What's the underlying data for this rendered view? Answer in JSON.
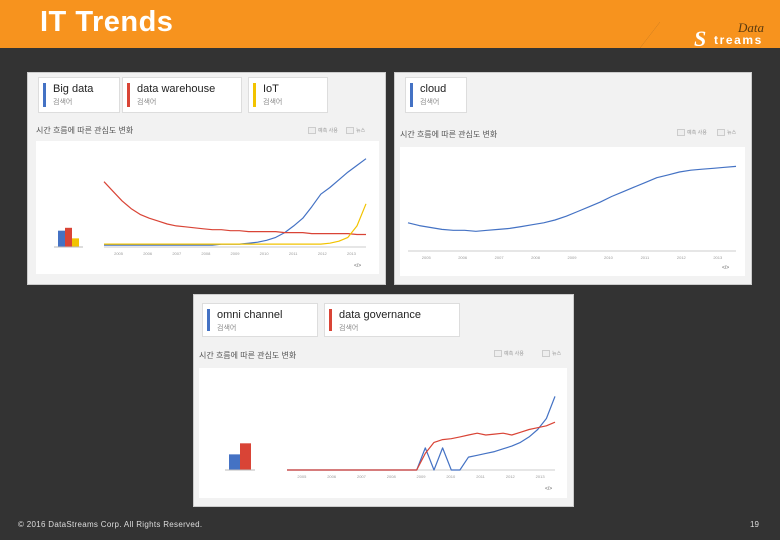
{
  "slide": {
    "title": "IT Trends",
    "logo": {
      "script": "Data",
      "text": "treams",
      "mark": "S"
    },
    "footer_left": "© 2016 DataStreams Corp. All Rights Reserved.",
    "page_number": "19",
    "colors": {
      "accent": "#f7931e",
      "background": "#333333",
      "blue": "#4472c4",
      "red": "#d94436",
      "yellow": "#f2c300"
    }
  },
  "chart_data": [
    {
      "type": "line",
      "terms": [
        {
          "name": "Big data",
          "sub": "검색어",
          "color": "#4472c4"
        },
        {
          "name": "data warehouse",
          "sub": "검색어",
          "color": "#d94436"
        },
        {
          "name": "IoT",
          "sub": "검색어",
          "color": "#f2c300"
        }
      ],
      "title": "시간 흐름에 따른 관심도 변화",
      "x_ticks": [
        "2005",
        "2006",
        "2007",
        "2008",
        "2009",
        "2010",
        "2011",
        "2012",
        "2013"
      ],
      "ylim": [
        0,
        100
      ],
      "averages": [
        {
          "name": "Big data",
          "value": 17,
          "color": "#4472c4"
        },
        {
          "name": "data warehouse",
          "value": 20,
          "color": "#d94436"
        },
        {
          "name": "IoT",
          "value": 9,
          "color": "#f2c300"
        }
      ],
      "series": [
        {
          "name": "Big data",
          "color": "#4472c4",
          "values": [
            2,
            2,
            2,
            2,
            2,
            2,
            2,
            2,
            2,
            2,
            2,
            2,
            2,
            3,
            3,
            3,
            4,
            5,
            7,
            10,
            15,
            22,
            30,
            42,
            55,
            62,
            70,
            78,
            85,
            92
          ]
        },
        {
          "name": "data warehouse",
          "color": "#d94436",
          "values": [
            68,
            58,
            48,
            40,
            34,
            30,
            27,
            24,
            22,
            21,
            20,
            19,
            18,
            18,
            17,
            17,
            16,
            16,
            16,
            16,
            15,
            15,
            15,
            14,
            14,
            14,
            14,
            14,
            13,
            13
          ]
        },
        {
          "name": "IoT",
          "color": "#f2c300",
          "values": [
            3,
            3,
            3,
            3,
            3,
            3,
            3,
            3,
            3,
            3,
            3,
            3,
            3,
            3,
            3,
            3,
            3,
            3,
            3,
            3,
            3,
            3,
            3,
            3,
            3,
            4,
            6,
            10,
            22,
            45
          ]
        }
      ]
    },
    {
      "type": "line",
      "terms": [
        {
          "name": "cloud",
          "sub": "검색어",
          "color": "#4472c4"
        }
      ],
      "title": "시간 흐름에 따른 관심도 변화",
      "x_ticks": [
        "2005",
        "2006",
        "2007",
        "2008",
        "2009",
        "2010",
        "2011",
        "2012",
        "2013"
      ],
      "ylim": [
        0,
        100
      ],
      "series": [
        {
          "name": "cloud",
          "color": "#4472c4",
          "values": [
            30,
            27,
            25,
            23,
            22,
            22,
            21,
            22,
            23,
            24,
            26,
            28,
            30,
            33,
            37,
            42,
            47,
            52,
            58,
            63,
            68,
            73,
            78,
            81,
            84,
            86,
            87,
            88,
            89,
            90
          ]
        }
      ]
    },
    {
      "type": "line",
      "terms": [
        {
          "name": "omni channel",
          "sub": "검색어",
          "color": "#4472c4"
        },
        {
          "name": "data governance",
          "sub": "검색어",
          "color": "#d94436"
        }
      ],
      "title": "시간 흐름에 따른 관심도 변화",
      "x_ticks": [
        "2005",
        "2006",
        "2007",
        "2008",
        "2009",
        "2010",
        "2011",
        "2012",
        "2013"
      ],
      "ylim": [
        0,
        100
      ],
      "averages": [
        {
          "name": "omni channel",
          "value": 17,
          "color": "#4472c4"
        },
        {
          "name": "data governance",
          "value": 29,
          "color": "#d94436"
        }
      ],
      "series": [
        {
          "name": "omni channel",
          "color": "#4472c4",
          "values": [
            0,
            0,
            0,
            0,
            0,
            0,
            0,
            0,
            0,
            0,
            0,
            0,
            0,
            0,
            0,
            0,
            24,
            0,
            24,
            0,
            0,
            14,
            16,
            18,
            20,
            23,
            26,
            30,
            36,
            44,
            56,
            80
          ]
        },
        {
          "name": "data governance",
          "color": "#d94436",
          "values": [
            0,
            0,
            0,
            0,
            0,
            0,
            0,
            0,
            0,
            0,
            0,
            0,
            0,
            0,
            0,
            0,
            18,
            30,
            33,
            34,
            36,
            38,
            40,
            38,
            39,
            40,
            38,
            41,
            44,
            46,
            48,
            52
          ]
        }
      ]
    }
  ],
  "ui": {
    "ctrl_forecast": "예측 사용",
    "ctrl_news": "뉴스",
    "embed": "</>"
  }
}
